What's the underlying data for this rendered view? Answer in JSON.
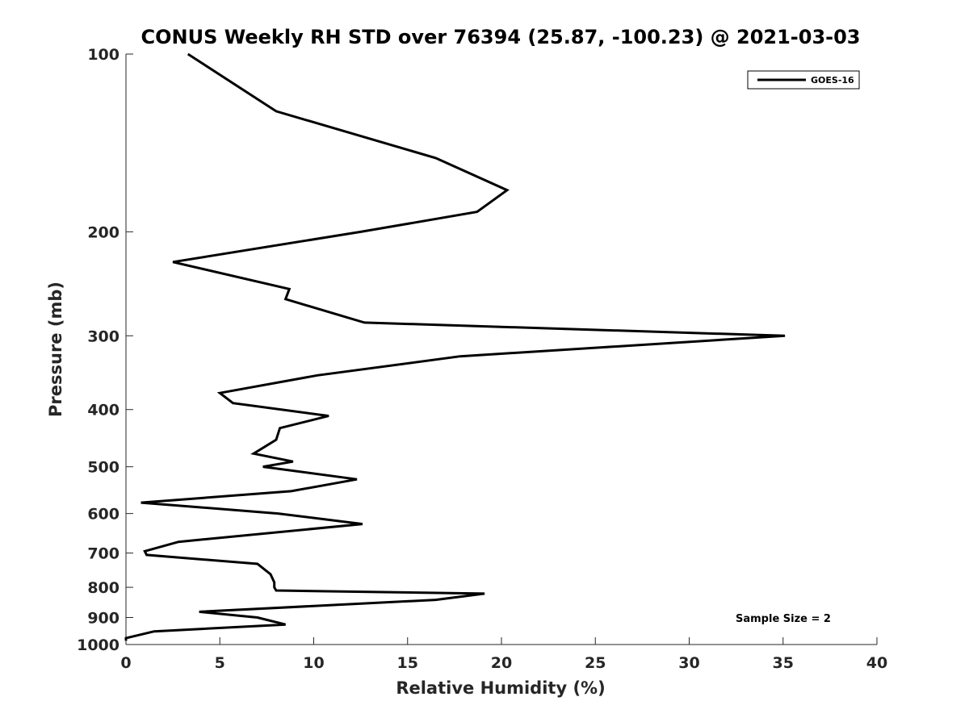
{
  "chart_data": {
    "type": "line",
    "title": "CONUS Weekly RH STD over 76394 (25.87, -100.23) @ 2021-03-03",
    "xlabel": "Relative Humidity (%)",
    "ylabel": "Pressure (mb)",
    "xlim": [
      0,
      40
    ],
    "ylim": [
      100,
      1000
    ],
    "yscale": "log",
    "y_reversed": true,
    "x_ticks": [
      "0",
      "5",
      "10",
      "15",
      "20",
      "25",
      "30",
      "35",
      "40"
    ],
    "y_ticks": [
      "100",
      "200",
      "300",
      "400",
      "500",
      "600",
      "700",
      "800",
      "900",
      "1000"
    ],
    "grid": false,
    "legend_position": "top-right",
    "annotation": "Sample Size = 2",
    "series": [
      {
        "name": "GOES-16",
        "color": "#000000",
        "x": [
          3.3,
          8.0,
          16.5,
          20.3,
          18.7,
          12.5,
          2.5,
          8.7,
          8.5,
          12.7,
          35.1,
          17.8,
          10.2,
          5.0,
          5.7,
          10.8,
          8.2,
          8.0,
          6.8,
          8.9,
          7.3,
          12.3,
          8.8,
          0.8,
          8.1,
          12.6,
          2.8,
          1.0,
          1.1,
          7.0,
          7.7,
          7.9,
          7.9,
          8.0,
          19.1,
          16.5,
          3.9,
          7.0,
          8.5,
          1.5,
          0.0,
          0.0
        ],
        "y": [
          100,
          125,
          150,
          170,
          185,
          200,
          225,
          250,
          260,
          285,
          300,
          325,
          350,
          375,
          390,
          410,
          430,
          450,
          475,
          490,
          500,
          525,
          550,
          575,
          600,
          625,
          670,
          695,
          705,
          730,
          760,
          785,
          800,
          810,
          820,
          840,
          880,
          900,
          925,
          950,
          975,
          985
        ]
      }
    ]
  }
}
